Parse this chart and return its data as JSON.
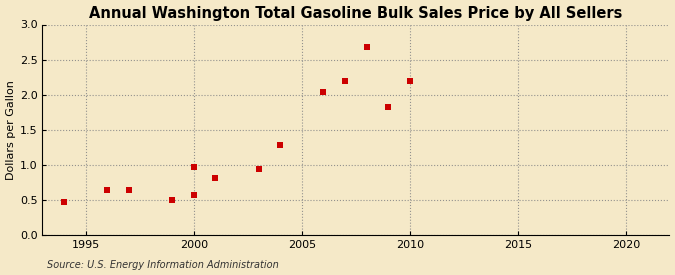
{
  "title": "Annual Washington Total Gasoline Bulk Sales Price by All Sellers",
  "ylabel": "Dollars per Gallon",
  "source": "Source: U.S. Energy Information Administration",
  "background_color": "#f5e9c8",
  "marker_color": "#cc0000",
  "years": [
    1994,
    1996,
    1997,
    1999,
    2000,
    2000,
    2001,
    2003,
    2004,
    2006,
    2007,
    2008,
    2009,
    2010
  ],
  "values": [
    0.47,
    0.65,
    0.64,
    0.5,
    0.58,
    0.97,
    0.81,
    0.94,
    1.28,
    2.04,
    2.2,
    2.68,
    1.82,
    2.19
  ],
  "xlim": [
    1993,
    2022
  ],
  "ylim": [
    0.0,
    3.0
  ],
  "xticks": [
    1995,
    2000,
    2005,
    2010,
    2015,
    2020
  ],
  "yticks": [
    0.0,
    0.5,
    1.0,
    1.5,
    2.0,
    2.5,
    3.0
  ],
  "title_fontsize": 10.5,
  "label_fontsize": 8,
  "tick_fontsize": 8,
  "source_fontsize": 7,
  "marker_size": 4.5
}
